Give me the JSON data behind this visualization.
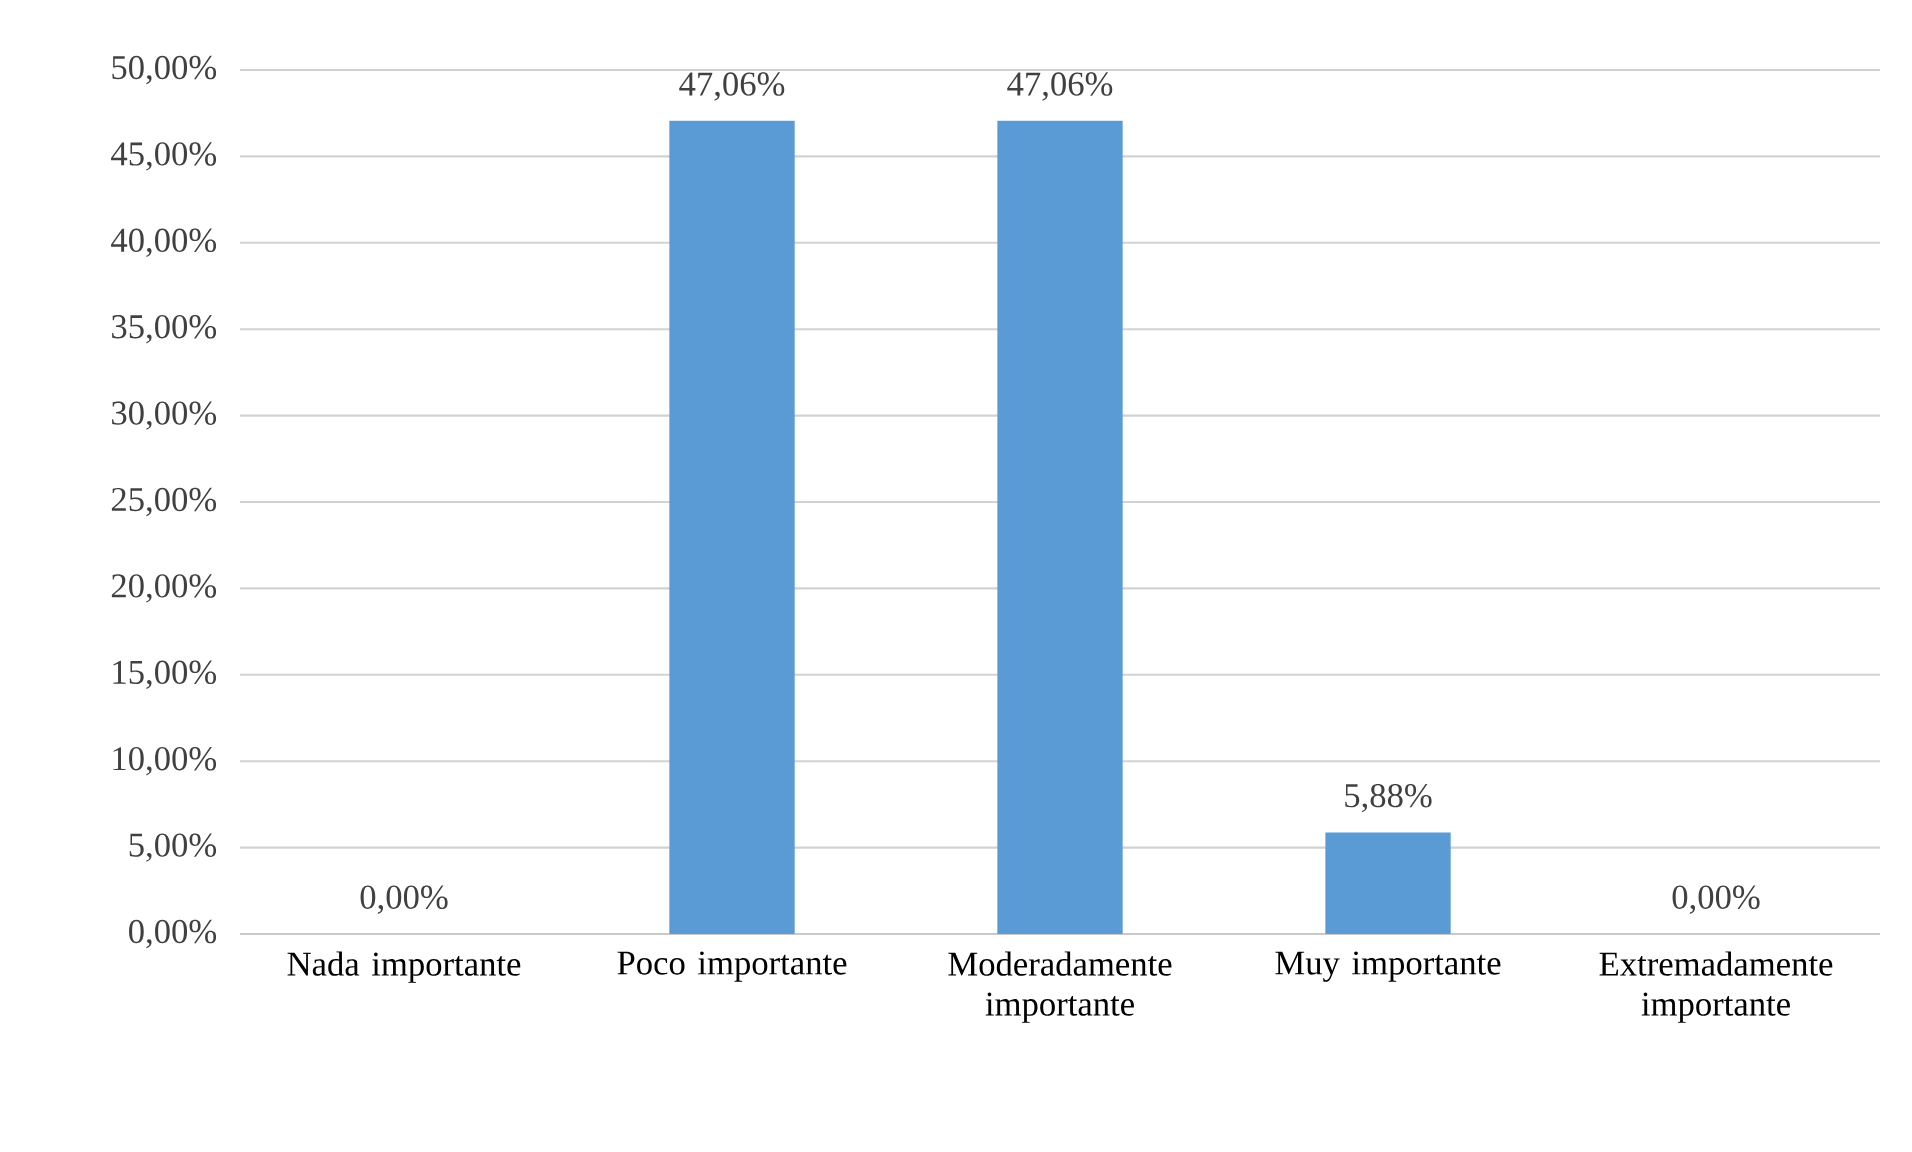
{
  "chart_data": {
    "type": "bar",
    "categories": [
      "Nada importante",
      "Poco importante",
      "Moderadamente importante",
      "Muy importante",
      "Extremadamente importante"
    ],
    "values": [
      0,
      47.06,
      47.06,
      5.88,
      0
    ],
    "value_labels": [
      "0,00%",
      "47,06%",
      "47,06%",
      "5,88%",
      "0,00%"
    ],
    "color": "#5b9bd5",
    "ylim": [
      0,
      50
    ],
    "yticks": [
      {
        "value": 0,
        "label": "0,00%"
      },
      {
        "value": 5,
        "label": "5,00%"
      },
      {
        "value": 10,
        "label": "10,00%"
      },
      {
        "value": 15,
        "label": "15,00%"
      },
      {
        "value": 20,
        "label": "20,00%"
      },
      {
        "value": 25,
        "label": "25,00%"
      },
      {
        "value": 30,
        "label": "30,00%"
      },
      {
        "value": 35,
        "label": "35,00%"
      },
      {
        "value": 40,
        "label": "40,00%"
      },
      {
        "value": 45,
        "label": "45,00%"
      },
      {
        "value": 50,
        "label": "50,00%"
      }
    ],
    "grid": "y"
  }
}
